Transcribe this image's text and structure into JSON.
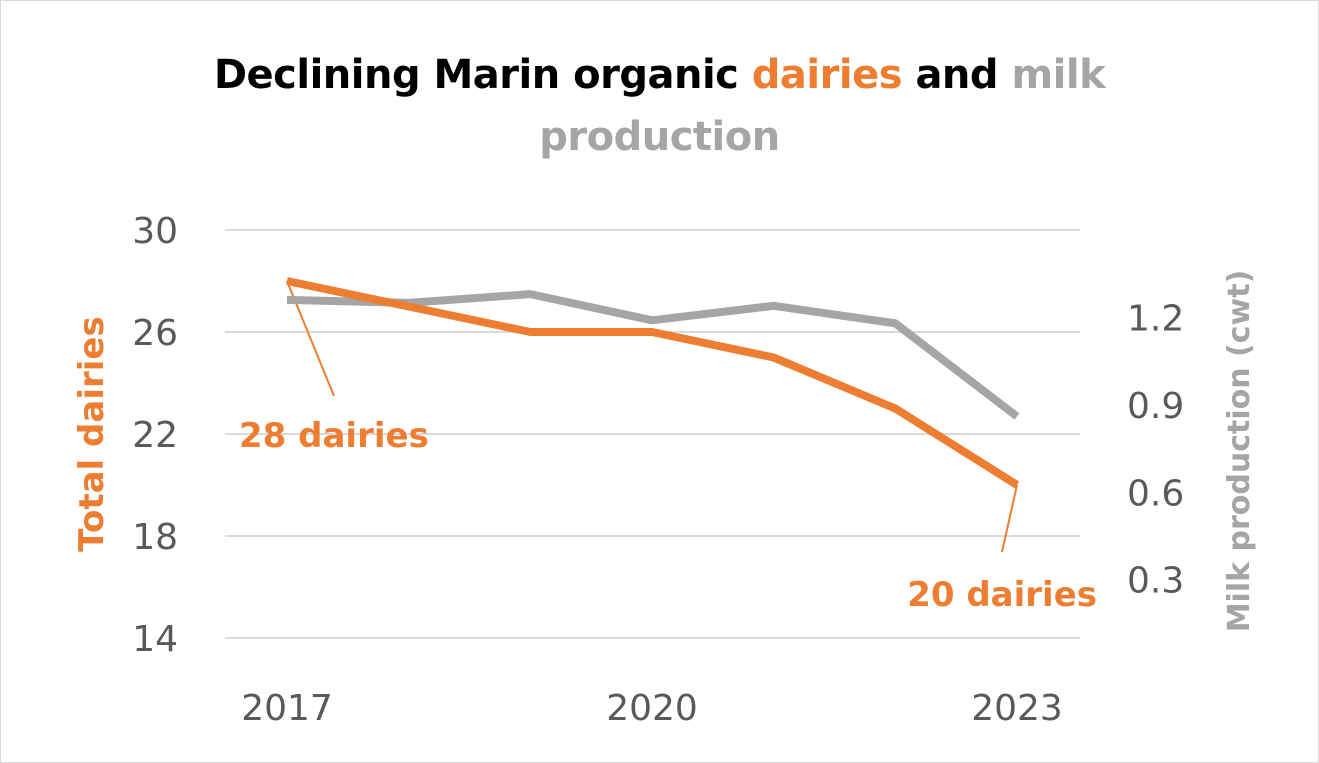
{
  "chart_data": {
    "type": "line",
    "title": {
      "part1": "Declining Marin organic ",
      "part2": "dairies",
      "part3": " and ",
      "part4": "milk",
      "line2": "production"
    },
    "x": [
      2017,
      2018,
      2019,
      2020,
      2021,
      2022,
      2023
    ],
    "x_tick_labels": [
      "2017",
      "2020",
      "2023"
    ],
    "x_tick_values": [
      2017,
      2020,
      2023
    ],
    "y_left": {
      "label": "Total dairies",
      "lim": [
        14,
        30
      ],
      "ticks": [
        14,
        18,
        22,
        26,
        30
      ],
      "tick_labels": [
        "14",
        "18",
        "22",
        "26",
        "30"
      ],
      "color": "#ED7D31"
    },
    "y_right": {
      "label": "Milk production (cwt)",
      "lim": [
        0.1,
        1.5
      ],
      "ticks": [
        0.3,
        0.6,
        0.9,
        1.2
      ],
      "tick_labels": [
        "0.3",
        "0.6",
        "0.9",
        "1.2"
      ],
      "color": "#A5A5A5"
    },
    "series": [
      {
        "name": "dairies",
        "axis": "left",
        "color": "#ED7D31",
        "values": [
          28,
          27,
          26,
          26,
          25,
          23,
          20
        ]
      },
      {
        "name": "milk production",
        "axis": "right",
        "color": "#A5A5A5",
        "values": [
          1.26,
          1.25,
          1.28,
          1.19,
          1.24,
          1.18,
          0.86
        ]
      }
    ],
    "annotations": [
      {
        "text": "28 dairies",
        "x": 2017,
        "y": 28,
        "color": "#ED7D31"
      },
      {
        "text": "20 dairies",
        "x": 2023,
        "y": 20,
        "color": "#ED7D31"
      }
    ],
    "grid": true,
    "legend": "none"
  }
}
